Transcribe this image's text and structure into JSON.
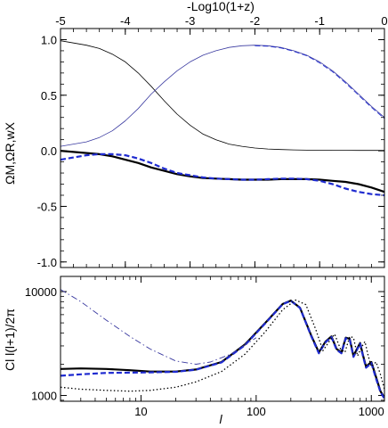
{
  "chart_data": [
    {
      "type": "line",
      "xlabel_top": "-Log10(1+z)",
      "ylabel": "ΩM,ΩR,wX",
      "xlim": [
        -5,
        0
      ],
      "ylim": [
        -1.05,
        1.1
      ],
      "x_ticks": [
        -5,
        -4,
        -3,
        -2,
        -1,
        0
      ],
      "y_ticks": [
        1.0,
        0.5,
        0.0,
        -0.5,
        -1.0
      ],
      "x_tick_labels": [
        "-5",
        "-4",
        "-3",
        "-2",
        "-1",
        "0"
      ],
      "y_tick_labels": [
        "1.0",
        "0.5",
        "0.0",
        "-0.5",
        "-1.0"
      ],
      "series": [
        {
          "color": "#000000",
          "style": "solid",
          "width": 0.8,
          "x": [
            -5.0,
            -4.8,
            -4.6,
            -4.4,
            -4.2,
            -4.0,
            -3.8,
            -3.6,
            -3.4,
            -3.2,
            -3.0,
            -2.8,
            -2.6,
            -2.4,
            -2.2,
            -2.0,
            -1.8,
            -1.6,
            -1.4,
            -1.2,
            -1.0,
            -0.8,
            -0.6,
            -0.4,
            -0.2,
            0.0
          ],
          "values": [
            0.99,
            0.97,
            0.95,
            0.92,
            0.87,
            0.8,
            0.7,
            0.58,
            0.45,
            0.33,
            0.23,
            0.15,
            0.1,
            0.06,
            0.04,
            0.025,
            0.016,
            0.011,
            0.008,
            0.006,
            0.005,
            0.004,
            0.004,
            0.003,
            0.003,
            0.003
          ]
        },
        {
          "color": "#3a3aa0",
          "style": "solid",
          "width": 0.8,
          "x": [
            -5.0,
            -4.8,
            -4.6,
            -4.4,
            -4.2,
            -4.0,
            -3.8,
            -3.6,
            -3.4,
            -3.2,
            -3.0,
            -2.8,
            -2.6,
            -2.4,
            -2.2,
            -2.0,
            -1.8,
            -1.6,
            -1.4,
            -1.2,
            -1.0,
            -0.8,
            -0.6,
            -0.4,
            -0.2,
            0.0
          ],
          "values": [
            0.04,
            0.06,
            0.08,
            0.12,
            0.18,
            0.27,
            0.38,
            0.51,
            0.62,
            0.72,
            0.8,
            0.86,
            0.9,
            0.93,
            0.945,
            0.95,
            0.945,
            0.93,
            0.9,
            0.86,
            0.8,
            0.72,
            0.62,
            0.51,
            0.4,
            0.3
          ]
        },
        {
          "color": "#1f2bd0",
          "style": "dashed",
          "width": 0.8,
          "x": [
            -2.0,
            -1.8,
            -1.6,
            -1.4,
            -1.2,
            -1.0,
            -0.8,
            -0.6,
            -0.4,
            -0.2,
            0.0
          ],
          "values": [
            0.945,
            0.94,
            0.925,
            0.895,
            0.855,
            0.79,
            0.71,
            0.61,
            0.5,
            0.39,
            0.29
          ]
        },
        {
          "color": "#000000",
          "style": "solid",
          "width": 2.2,
          "x": [
            -5.0,
            -4.8,
            -4.6,
            -4.4,
            -4.2,
            -4.0,
            -3.8,
            -3.6,
            -3.4,
            -3.2,
            -3.0,
            -2.8,
            -2.6,
            -2.4,
            -2.2,
            -2.0,
            -1.8,
            -1.6,
            -1.4,
            -1.2,
            -1.0,
            -0.8,
            -0.6,
            -0.4,
            -0.2,
            0.0
          ],
          "values": [
            0.0,
            -0.01,
            -0.02,
            -0.03,
            -0.05,
            -0.08,
            -0.11,
            -0.15,
            -0.18,
            -0.21,
            -0.23,
            -0.245,
            -0.25,
            -0.255,
            -0.26,
            -0.26,
            -0.26,
            -0.255,
            -0.255,
            -0.255,
            -0.26,
            -0.27,
            -0.28,
            -0.3,
            -0.33,
            -0.37
          ]
        },
        {
          "color": "#1f2bd0",
          "style": "dashed",
          "width": 2.2,
          "x": [
            -5.0,
            -4.8,
            -4.6,
            -4.4,
            -4.2,
            -4.0,
            -3.8,
            -3.6,
            -3.4,
            -3.2,
            -3.0,
            -2.8,
            -2.6,
            -2.4,
            -2.2,
            -2.0,
            -1.8,
            -1.6,
            -1.4,
            -1.2,
            -1.0,
            -0.8,
            -0.6,
            -0.4,
            -0.2,
            0.0
          ],
          "values": [
            -0.08,
            -0.06,
            -0.04,
            -0.03,
            -0.03,
            -0.04,
            -0.07,
            -0.11,
            -0.16,
            -0.2,
            -0.22,
            -0.24,
            -0.25,
            -0.255,
            -0.26,
            -0.26,
            -0.255,
            -0.25,
            -0.25,
            -0.255,
            -0.27,
            -0.3,
            -0.34,
            -0.37,
            -0.39,
            -0.4
          ]
        }
      ]
    },
    {
      "type": "line",
      "xlabel": "l",
      "ylabel": "Cl l(l+1)/2π",
      "xscale": "log",
      "yscale": "log",
      "xlim": [
        2,
        1300
      ],
      "ylim": [
        880,
        14000
      ],
      "x_ticks": [
        10,
        100,
        1000
      ],
      "y_ticks": [
        1000,
        10000
      ],
      "x_tick_labels": [
        "10",
        "100",
        "1000"
      ],
      "y_tick_labels": [
        "1000",
        "10000"
      ],
      "series": [
        {
          "color": "#000000",
          "style": "solid",
          "width": 2.2,
          "x": [
            2,
            3,
            5,
            8,
            12,
            20,
            30,
            50,
            80,
            120,
            170,
            200,
            240,
            300,
            350,
            400,
            450,
            500,
            550,
            600,
            650,
            700,
            750,
            800,
            850,
            900,
            1000,
            1100,
            1200,
            1300
          ],
          "values": [
            1800,
            1820,
            1800,
            1750,
            1700,
            1700,
            1780,
            2100,
            3100,
            5000,
            7600,
            8200,
            7000,
            3800,
            2600,
            3300,
            3700,
            2800,
            2600,
            3600,
            3500,
            2400,
            2800,
            3200,
            2400,
            1900,
            2100,
            1500,
            1100,
            950
          ]
        },
        {
          "color": "#1f2bd0",
          "style": "dashed",
          "width": 2.2,
          "x": [
            2,
            3,
            5,
            8,
            12,
            20,
            30,
            50,
            80,
            120,
            170,
            200,
            240,
            300,
            350,
            400,
            450,
            500,
            550,
            600,
            650,
            700,
            750,
            800,
            850,
            900,
            1000,
            1100,
            1200,
            1300
          ],
          "values": [
            1550,
            1600,
            1650,
            1660,
            1670,
            1690,
            1770,
            2080,
            3050,
            4950,
            7550,
            8150,
            6950,
            3750,
            2550,
            3250,
            3650,
            2750,
            2550,
            3550,
            3450,
            2350,
            2750,
            3150,
            2350,
            1850,
            2050,
            1450,
            1080,
            930
          ]
        },
        {
          "color": "#3a3aa0",
          "style": "dashdot",
          "width": 0.9,
          "x": [
            2,
            3,
            5,
            8,
            12,
            20,
            30,
            40,
            60,
            100
          ],
          "values": [
            10500,
            8000,
            5300,
            3700,
            2800,
            2150,
            2000,
            2100,
            2500,
            3600
          ]
        },
        {
          "color": "#000000",
          "style": "dotted",
          "width": 1.3,
          "x": [
            2,
            3,
            5,
            8,
            12,
            20,
            30,
            50,
            80,
            120,
            170,
            220,
            270,
            330,
            380,
            430,
            480,
            540,
            590,
            650,
            700,
            760,
            820,
            880,
            940,
            1000,
            1100,
            1200,
            1300
          ],
          "values": [
            1200,
            1150,
            1120,
            1100,
            1120,
            1200,
            1350,
            1700,
            2500,
            4100,
            6700,
            8300,
            7500,
            4300,
            2700,
            3300,
            3900,
            2800,
            2600,
            3700,
            3600,
            2400,
            2900,
            3300,
            2400,
            1900,
            2100,
            1600,
            1150
          ]
        }
      ]
    }
  ]
}
